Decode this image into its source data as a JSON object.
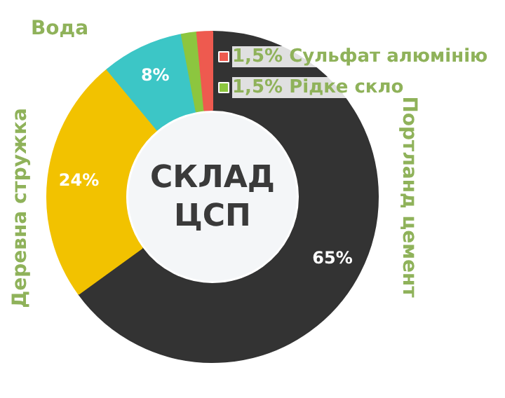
{
  "chart_data": {
    "type": "donut",
    "title": "СКЛАД ЦСП",
    "categories": [
      "Портланд цемент",
      "Деревна стружка",
      "Вода",
      "Рідке скло",
      "Сульфат алюмінію"
    ],
    "values": [
      65,
      24,
      8,
      1.5,
      1.5
    ],
    "colors": [
      "#333333",
      "#f2c200",
      "#3cc6c6",
      "#8cc63f",
      "#ee5a4f"
    ],
    "value_labels": [
      "65%",
      "24%",
      "8%",
      "1,5%",
      "1,5%"
    ],
    "legend": "top right"
  }
}
